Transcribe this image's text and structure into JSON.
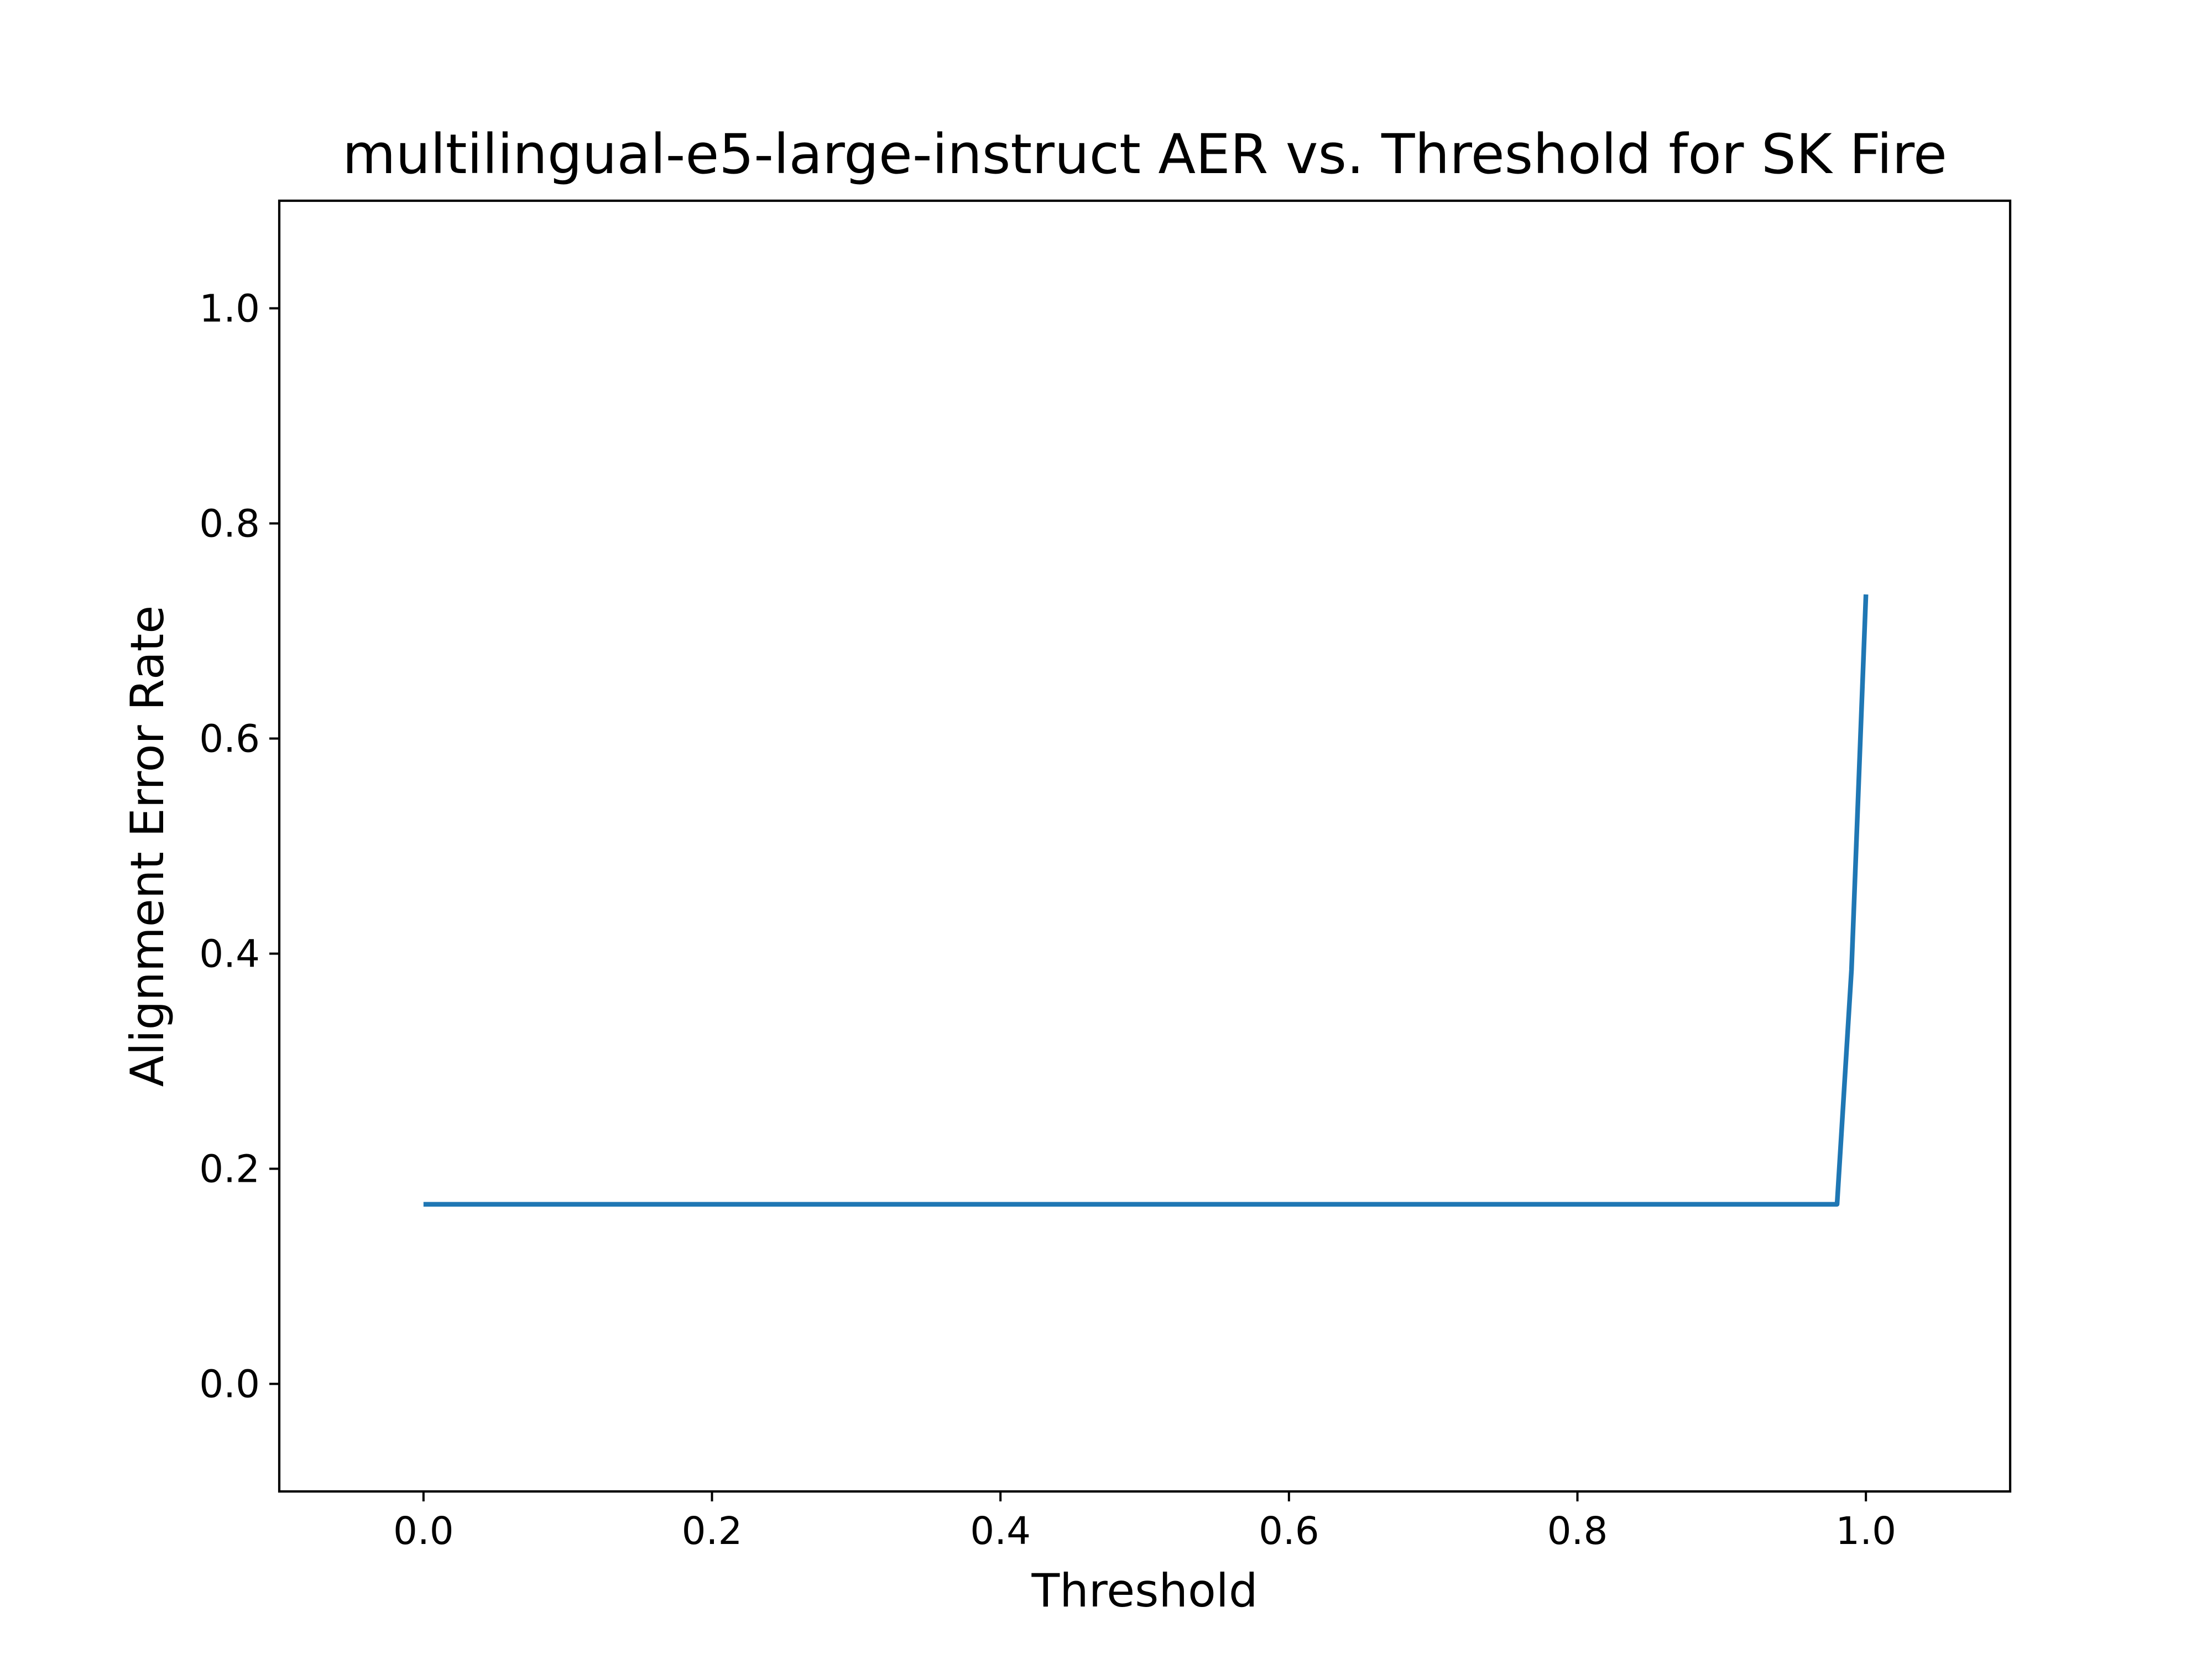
{
  "chart_data": {
    "type": "line",
    "title": "multilingual-e5-large-instruct AER vs. Threshold for SK Fire",
    "xlabel": "Threshold",
    "ylabel": "Alignment Error Rate",
    "xlim": [
      -0.1,
      1.1
    ],
    "ylim": [
      -0.1,
      1.1
    ],
    "xticks": [
      0.0,
      0.2,
      0.4,
      0.6,
      0.8,
      1.0
    ],
    "xtick_labels": [
      "0.0",
      "0.2",
      "0.4",
      "0.6",
      "0.8",
      "1.0"
    ],
    "yticks": [
      0.0,
      0.2,
      0.4,
      0.6,
      0.8,
      1.0
    ],
    "ytick_labels": [
      "0.0",
      "0.2",
      "0.4",
      "0.6",
      "0.8",
      "1.0"
    ],
    "grid": false,
    "legend": false,
    "line_color": "#1f77b4",
    "series": [
      {
        "x": [
          0.0,
          0.1,
          0.2,
          0.3,
          0.4,
          0.5,
          0.6,
          0.7,
          0.8,
          0.9,
          0.98,
          0.99,
          1.0
        ],
        "y": [
          0.167,
          0.167,
          0.167,
          0.167,
          0.167,
          0.167,
          0.167,
          0.167,
          0.167,
          0.167,
          0.167,
          0.385,
          0.734
        ]
      }
    ]
  }
}
